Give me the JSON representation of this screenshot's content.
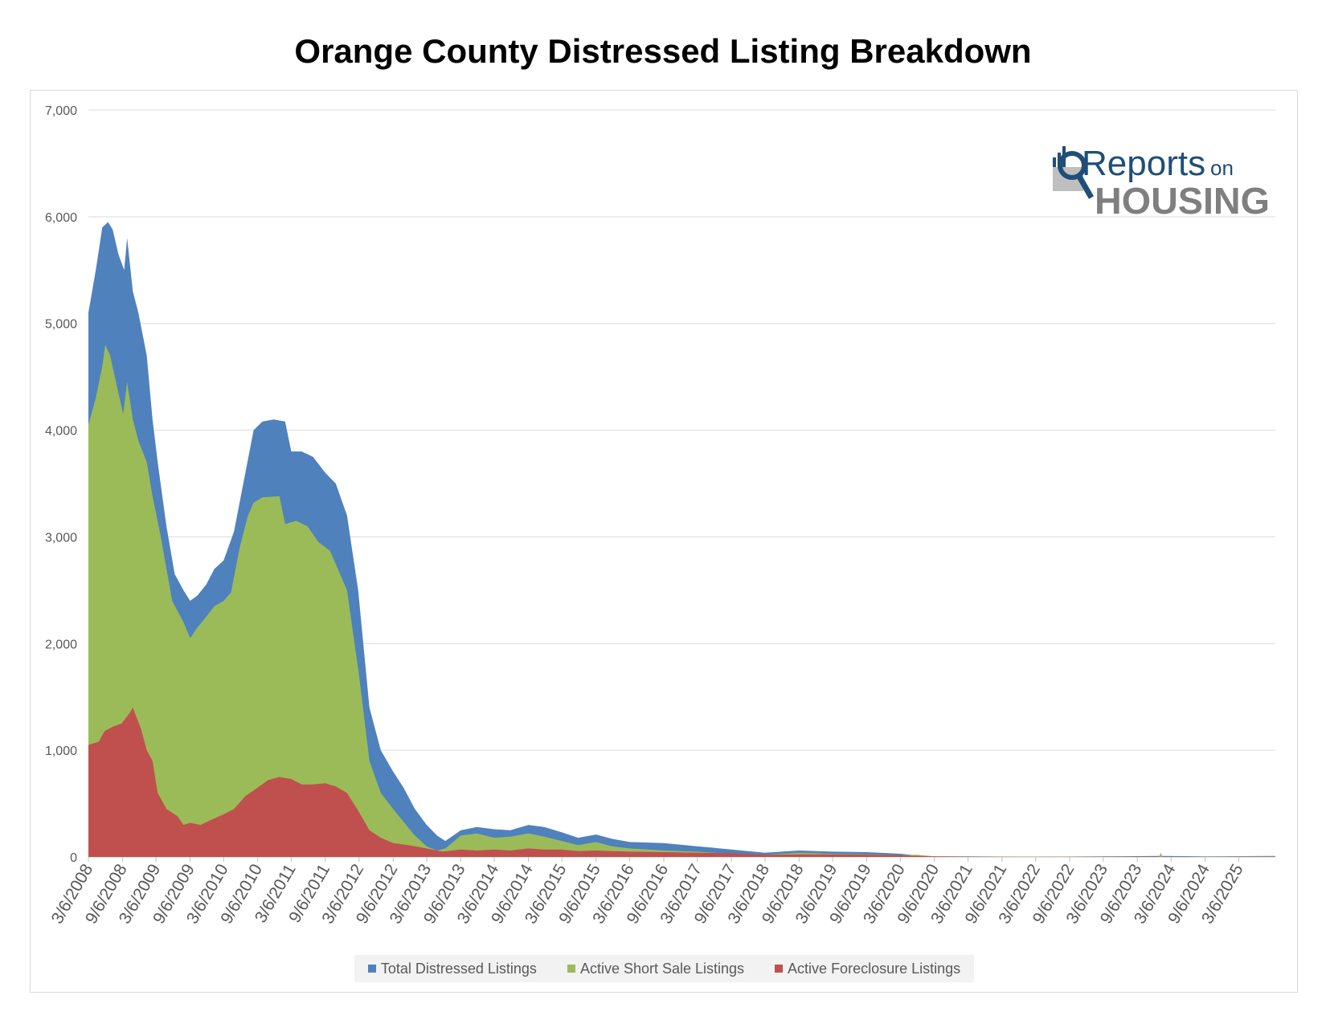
{
  "title": "Orange County Distressed Listing Breakdown",
  "logo": {
    "line1": "Reports",
    "line1_suffix": "on",
    "line2": "HOUSING"
  },
  "chart_data": {
    "type": "area",
    "stacked": false,
    "ylim": [
      0,
      7000
    ],
    "yticks": [
      0,
      1000,
      2000,
      3000,
      4000,
      5000,
      6000,
      7000
    ],
    "ytick_labels": [
      "0",
      "1,000",
      "2,000",
      "3,000",
      "4,000",
      "5,000",
      "6,000",
      "7,000"
    ],
    "xtick_labels": [
      "3/6/2008",
      "9/6/2008",
      "3/6/2009",
      "9/6/2009",
      "3/6/2010",
      "9/6/2010",
      "3/6/2011",
      "9/6/2011",
      "3/6/2012",
      "9/6/2012",
      "3/6/2013",
      "9/6/2013",
      "3/6/2014",
      "9/6/2014",
      "3/6/2015",
      "9/6/2015",
      "3/6/2016",
      "9/6/2016",
      "3/6/2017",
      "9/6/2017",
      "3/6/2018",
      "9/6/2018",
      "3/6/2019",
      "9/6/2019",
      "3/6/2020",
      "9/6/2020",
      "3/6/2021",
      "9/6/2021",
      "3/6/2022",
      "9/6/2022",
      "3/6/2023",
      "9/6/2023",
      "3/6/2024",
      "9/6/2024",
      "3/6/2025"
    ],
    "x_range": [
      "2008-03-06",
      "2025-09-20"
    ],
    "grid": true,
    "legend_position": "bottom",
    "series": [
      {
        "name": "Total Distressed Listings",
        "color": "#4f81bd",
        "points": [
          [
            "2008-03-06",
            5100
          ],
          [
            "2008-04-15",
            5500
          ],
          [
            "2008-05-20",
            5900
          ],
          [
            "2008-06-20",
            5950
          ],
          [
            "2008-07-15",
            5880
          ],
          [
            "2008-08-15",
            5650
          ],
          [
            "2008-09-15",
            5500
          ],
          [
            "2008-10-01",
            5800
          ],
          [
            "2008-11-01",
            5300
          ],
          [
            "2008-12-01",
            5100
          ],
          [
            "2009-01-15",
            4700
          ],
          [
            "2009-02-15",
            4100
          ],
          [
            "2009-03-15",
            3700
          ],
          [
            "2009-05-01",
            3100
          ],
          [
            "2009-06-15",
            2650
          ],
          [
            "2009-08-01",
            2500
          ],
          [
            "2009-09-06",
            2400
          ],
          [
            "2009-10-15",
            2450
          ],
          [
            "2009-12-01",
            2550
          ],
          [
            "2010-01-15",
            2700
          ],
          [
            "2010-03-06",
            2780
          ],
          [
            "2010-05-01",
            3050
          ],
          [
            "2010-07-01",
            3600
          ],
          [
            "2010-08-15",
            4000
          ],
          [
            "2010-10-01",
            4080
          ],
          [
            "2010-12-01",
            4100
          ],
          [
            "2011-02-01",
            4080
          ],
          [
            "2011-03-06",
            3800
          ],
          [
            "2011-05-01",
            3800
          ],
          [
            "2011-07-01",
            3750
          ],
          [
            "2011-09-06",
            3600
          ],
          [
            "2011-11-01",
            3500
          ],
          [
            "2012-01-01",
            3200
          ],
          [
            "2012-03-01",
            2500
          ],
          [
            "2012-05-01",
            1400
          ],
          [
            "2012-07-01",
            1000
          ],
          [
            "2012-09-06",
            800
          ],
          [
            "2012-11-01",
            650
          ],
          [
            "2013-01-01",
            450
          ],
          [
            "2013-03-06",
            300
          ],
          [
            "2013-05-01",
            200
          ],
          [
            "2013-06-15",
            150
          ],
          [
            "2013-09-06",
            250
          ],
          [
            "2013-12-01",
            280
          ],
          [
            "2014-03-06",
            260
          ],
          [
            "2014-06-01",
            250
          ],
          [
            "2014-09-06",
            300
          ],
          [
            "2014-12-01",
            280
          ],
          [
            "2015-03-06",
            230
          ],
          [
            "2015-06-01",
            180
          ],
          [
            "2015-09-06",
            210
          ],
          [
            "2015-12-01",
            170
          ],
          [
            "2016-03-06",
            140
          ],
          [
            "2016-09-06",
            130
          ],
          [
            "2017-03-06",
            100
          ],
          [
            "2017-09-06",
            70
          ],
          [
            "2018-03-06",
            40
          ],
          [
            "2018-09-06",
            60
          ],
          [
            "2019-03-06",
            50
          ],
          [
            "2019-09-06",
            45
          ],
          [
            "2020-03-06",
            30
          ],
          [
            "2020-06-01",
            15
          ],
          [
            "2020-09-06",
            5
          ],
          [
            "2021-03-06",
            5
          ],
          [
            "2022-03-06",
            2
          ],
          [
            "2023-03-06",
            5
          ],
          [
            "2024-01-15",
            10
          ],
          [
            "2024-09-06",
            5
          ],
          [
            "2025-09-20",
            10
          ]
        ]
      },
      {
        "name": "Active Short Sale Listings",
        "color": "#9bbb59",
        "points": [
          [
            "2008-03-06",
            4050
          ],
          [
            "2008-04-15",
            4300
          ],
          [
            "2008-05-20",
            4600
          ],
          [
            "2008-06-05",
            4800
          ],
          [
            "2008-07-01",
            4700
          ],
          [
            "2008-08-15",
            4350
          ],
          [
            "2008-09-10",
            4150
          ],
          [
            "2008-10-01",
            4450
          ],
          [
            "2008-11-01",
            4100
          ],
          [
            "2008-12-01",
            3900
          ],
          [
            "2009-01-15",
            3700
          ],
          [
            "2009-02-15",
            3380
          ],
          [
            "2009-04-01",
            3000
          ],
          [
            "2009-06-01",
            2400
          ],
          [
            "2009-08-01",
            2200
          ],
          [
            "2009-09-06",
            2050
          ],
          [
            "2009-10-15",
            2150
          ],
          [
            "2009-12-01",
            2250
          ],
          [
            "2010-01-15",
            2350
          ],
          [
            "2010-03-06",
            2400
          ],
          [
            "2010-04-15",
            2480
          ],
          [
            "2010-06-01",
            2900
          ],
          [
            "2010-07-15",
            3200
          ],
          [
            "2010-08-15",
            3320
          ],
          [
            "2010-10-01",
            3370
          ],
          [
            "2011-01-01",
            3380
          ],
          [
            "2011-02-01",
            3120
          ],
          [
            "2011-04-01",
            3150
          ],
          [
            "2011-06-01",
            3100
          ],
          [
            "2011-08-01",
            2950
          ],
          [
            "2011-10-01",
            2870
          ],
          [
            "2012-01-01",
            2500
          ],
          [
            "2012-03-06",
            1700
          ],
          [
            "2012-05-01",
            900
          ],
          [
            "2012-07-01",
            600
          ],
          [
            "2012-09-06",
            450
          ],
          [
            "2012-11-01",
            330
          ],
          [
            "2013-01-01",
            200
          ],
          [
            "2013-03-06",
            100
          ],
          [
            "2013-05-01",
            60
          ],
          [
            "2013-06-15",
            80
          ],
          [
            "2013-09-06",
            200
          ],
          [
            "2013-12-01",
            220
          ],
          [
            "2014-03-06",
            180
          ],
          [
            "2014-06-01",
            190
          ],
          [
            "2014-09-06",
            220
          ],
          [
            "2014-12-01",
            190
          ],
          [
            "2015-03-06",
            150
          ],
          [
            "2015-06-01",
            110
          ],
          [
            "2015-09-06",
            140
          ],
          [
            "2015-12-01",
            100
          ],
          [
            "2016-03-06",
            80
          ],
          [
            "2016-09-06",
            60
          ],
          [
            "2017-03-06",
            50
          ],
          [
            "2017-09-06",
            30
          ],
          [
            "2018-03-06",
            20
          ],
          [
            "2018-09-06",
            40
          ],
          [
            "2019-03-06",
            30
          ],
          [
            "2019-09-06",
            25
          ],
          [
            "2020-03-06",
            15
          ],
          [
            "2020-06-01",
            20
          ],
          [
            "2020-09-06",
            5
          ],
          [
            "2021-03-06",
            3
          ],
          [
            "2022-03-06",
            2
          ],
          [
            "2023-03-06",
            3
          ],
          [
            "2024-01-01",
            0
          ],
          [
            "2024-01-10",
            40
          ],
          [
            "2024-01-20",
            0
          ],
          [
            "2024-09-06",
            3
          ],
          [
            "2025-09-20",
            5
          ]
        ]
      },
      {
        "name": "Active Foreclosure Listings",
        "color": "#c0504d",
        "points": [
          [
            "2008-03-06",
            1050
          ],
          [
            "2008-05-01",
            1080
          ],
          [
            "2008-06-01",
            1180
          ],
          [
            "2008-07-15",
            1220
          ],
          [
            "2008-09-01",
            1250
          ],
          [
            "2008-10-15",
            1350
          ],
          [
            "2008-11-01",
            1400
          ],
          [
            "2008-12-15",
            1200
          ],
          [
            "2009-01-15",
            1000
          ],
          [
            "2009-02-15",
            900
          ],
          [
            "2009-03-15",
            600
          ],
          [
            "2009-05-01",
            450
          ],
          [
            "2009-07-01",
            380
          ],
          [
            "2009-08-01",
            300
          ],
          [
            "2009-09-06",
            320
          ],
          [
            "2009-11-01",
            300
          ],
          [
            "2010-01-01",
            350
          ],
          [
            "2010-03-06",
            400
          ],
          [
            "2010-05-01",
            450
          ],
          [
            "2010-07-01",
            570
          ],
          [
            "2010-09-06",
            650
          ],
          [
            "2010-11-01",
            720
          ],
          [
            "2011-01-01",
            750
          ],
          [
            "2011-03-06",
            730
          ],
          [
            "2011-05-01",
            680
          ],
          [
            "2011-07-01",
            680
          ],
          [
            "2011-09-06",
            690
          ],
          [
            "2011-11-01",
            660
          ],
          [
            "2012-01-01",
            600
          ],
          [
            "2012-03-06",
            420
          ],
          [
            "2012-05-01",
            250
          ],
          [
            "2012-07-01",
            180
          ],
          [
            "2012-09-06",
            130
          ],
          [
            "2012-12-01",
            110
          ],
          [
            "2013-03-06",
            80
          ],
          [
            "2013-06-01",
            50
          ],
          [
            "2013-09-06",
            70
          ],
          [
            "2013-12-01",
            60
          ],
          [
            "2014-03-06",
            70
          ],
          [
            "2014-06-01",
            60
          ],
          [
            "2014-09-06",
            80
          ],
          [
            "2014-12-01",
            70
          ],
          [
            "2015-03-06",
            70
          ],
          [
            "2015-06-01",
            55
          ],
          [
            "2015-09-06",
            60
          ],
          [
            "2015-12-01",
            55
          ],
          [
            "2016-03-06",
            50
          ],
          [
            "2016-09-06",
            45
          ],
          [
            "2017-03-06",
            40
          ],
          [
            "2017-09-06",
            35
          ],
          [
            "2018-03-06",
            20
          ],
          [
            "2018-09-06",
            25
          ],
          [
            "2019-03-06",
            25
          ],
          [
            "2019-09-06",
            20
          ],
          [
            "2020-03-06",
            15
          ],
          [
            "2020-09-06",
            5
          ],
          [
            "2021-03-06",
            3
          ],
          [
            "2022-03-06",
            1
          ],
          [
            "2023-03-06",
            3
          ],
          [
            "2024-09-06",
            1
          ],
          [
            "2025-09-20",
            3
          ]
        ]
      }
    ]
  }
}
